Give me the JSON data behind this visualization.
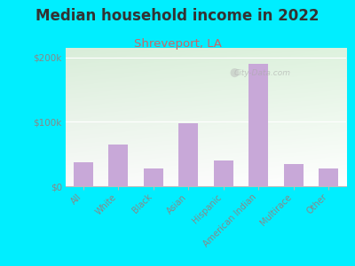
{
  "title": "Median household income in 2022",
  "subtitle": "Shreveport, LA",
  "categories": [
    "All",
    "White",
    "Black",
    "Asian",
    "Hispanic",
    "American Indian",
    "Multirace",
    "Other"
  ],
  "values": [
    37000,
    65000,
    28000,
    98000,
    40000,
    190000,
    35000,
    28000
  ],
  "bar_color": "#c8a8d8",
  "background_outer": "#00eeff",
  "title_color": "#333333",
  "subtitle_color": "#cc6666",
  "ylabel_ticks": [
    "$0",
    "$100k",
    "$200k"
  ],
  "ytick_vals": [
    0,
    100000,
    200000
  ],
  "ylim": [
    0,
    215000
  ],
  "watermark": "City-Data.com",
  "title_fontsize": 12,
  "subtitle_fontsize": 9.5,
  "tick_color": "#888888"
}
